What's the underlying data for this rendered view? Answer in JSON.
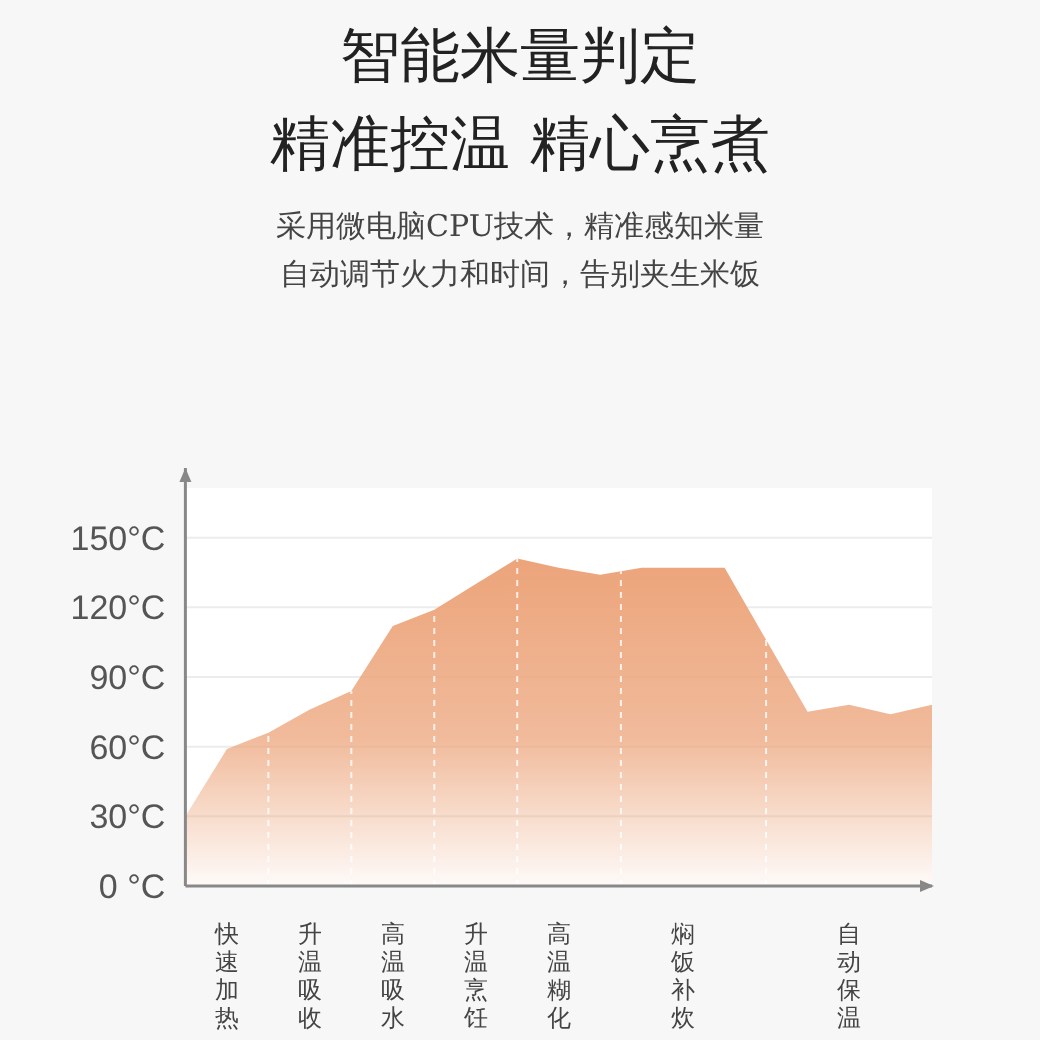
{
  "chart_data": {
    "type": "area",
    "title": "智能米量判定",
    "subtitle": "精准控温 精心烹煮",
    "annotations": [
      "采用微电脑CPU技术，精准感知米量",
      "自动调节火力和时间，告别夹生米饭"
    ],
    "categories": [
      null,
      "快速加热",
      null,
      "升温吸收",
      null,
      "高温吸水",
      null,
      "升温烹饪",
      null,
      "高温糊化",
      null,
      null,
      "焖饭补炊",
      null,
      null,
      null,
      "自动保温",
      null,
      null
    ],
    "series": [
      {
        "color": "#eca47a",
        "values": [
          30,
          59,
          66,
          76,
          84,
          112,
          119,
          130,
          141,
          137,
          134,
          137,
          137,
          137,
          106,
          75,
          78,
          74,
          78
        ]
      }
    ],
    "ylim": [
      0,
      180
    ],
    "yticks": [
      {
        "value": 0,
        "label": "0 °C"
      },
      {
        "value": 30,
        "label": "30°C"
      },
      {
        "value": 60,
        "label": "60°C"
      },
      {
        "value": 90,
        "label": "90°C"
      },
      {
        "value": 120,
        "label": "120°C"
      },
      {
        "value": 150,
        "label": "150°C"
      }
    ],
    "grid": true
  }
}
